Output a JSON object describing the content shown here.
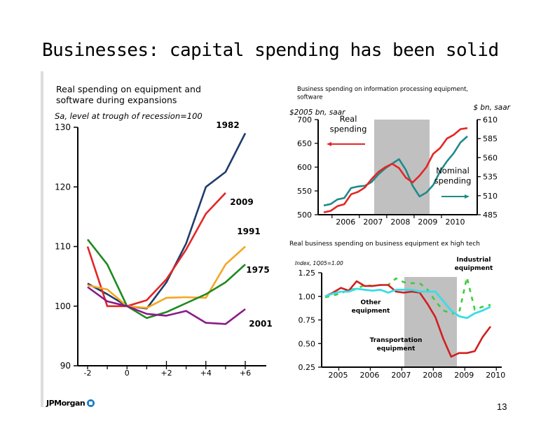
{
  "slide": {
    "title": "Businesses: capital spending has been solid",
    "footer_logo": "JPMorgan",
    "page_number": "13"
  },
  "chart_data": [
    {
      "type": "line",
      "title": "Real spending on equipment and software during expansions",
      "ylabel": "Sa, level at trough of recession=100",
      "xlabel": "",
      "x": [
        -2,
        -1,
        0,
        1,
        2,
        3,
        4,
        5,
        6
      ],
      "x_tick_labels": [
        "-2",
        "0",
        "+2",
        "+4",
        "+6"
      ],
      "y_ticks": [
        90,
        100,
        110,
        120,
        130
      ],
      "ylim": [
        90,
        130
      ],
      "series": [
        {
          "name": "1982",
          "color": "#1f3d6b",
          "values": [
            103.8,
            102,
            100,
            99.6,
            104,
            110.5,
            120,
            122.5,
            129
          ]
        },
        {
          "name": "2009",
          "color": "#e32626",
          "values": [
            110,
            100,
            100,
            101,
            104.5,
            109.5,
            115.5,
            119,
            null
          ]
        },
        {
          "name": "1991",
          "color": "#f5a623",
          "values": [
            103.5,
            102.8,
            100,
            99.7,
            101.4,
            101.5,
            101.4,
            107,
            110
          ]
        },
        {
          "name": "1975",
          "color": "#1e8a1e",
          "values": [
            111.2,
            107,
            100,
            98,
            99,
            100.5,
            102,
            104,
            107
          ]
        },
        {
          "name": "2001",
          "color": "#8a1a8a",
          "values": [
            103.2,
            100.8,
            100,
            98.7,
            98.4,
            99.2,
            97.2,
            97,
            99.5
          ]
        }
      ],
      "grid": false
    },
    {
      "type": "line",
      "title": "Business spending on information processing equipment, software",
      "ylabel_left": "$2005 bn, saar",
      "ylabel_right": "$ bn, saar",
      "x_tick_labels": [
        "2006",
        "2007",
        "2008",
        "2009",
        "2010"
      ],
      "xlim": [
        2005.25,
        2010.5
      ],
      "ylim_left": [
        500,
        700
      ],
      "ylim_right": [
        485,
        610
      ],
      "y_ticks_left": [
        500,
        550,
        600,
        650,
        700
      ],
      "y_ticks_right": [
        485,
        510,
        535,
        560,
        585,
        610
      ],
      "recession_shade": [
        2007.75,
        2009.5
      ],
      "annotations": [
        "Real spending",
        "Nominal spending"
      ],
      "series": [
        {
          "name": "Real spending",
          "axis": "left",
          "color": "#e32626",
          "x": [
            2005.25,
            2005.5,
            2005.75,
            2006.0,
            2006.25,
            2006.5,
            2006.75,
            2007.0,
            2007.25,
            2007.5,
            2007.75,
            2008.0,
            2008.25,
            2008.5,
            2008.75,
            2009.0,
            2009.25,
            2009.5,
            2009.75,
            2010.0,
            2010.25,
            2010.5
          ],
          "values": [
            505,
            508,
            518,
            522,
            543,
            548,
            557,
            575,
            590,
            600,
            607,
            598,
            578,
            568,
            582,
            600,
            628,
            640,
            660,
            668,
            680,
            682
          ]
        },
        {
          "name": "Nominal spending",
          "axis": "right",
          "color": "#1f8a8a",
          "x": [
            2005.25,
            2005.5,
            2005.75,
            2006.0,
            2006.25,
            2006.5,
            2006.75,
            2007.0,
            2007.25,
            2007.5,
            2007.75,
            2008.0,
            2008.25,
            2008.5,
            2008.75,
            2009.0,
            2009.25,
            2009.5,
            2009.75,
            2010.0,
            2010.25,
            2010.5
          ],
          "values": [
            497,
            499,
            505,
            507,
            520,
            522,
            523,
            528,
            538,
            546,
            552,
            558,
            544,
            523,
            509,
            514,
            524,
            542,
            555,
            566,
            580,
            588
          ]
        }
      ],
      "grid": false
    },
    {
      "type": "line",
      "title": "Real business spending on business equipment ex high tech",
      "ylabel": "Index, 1Q05=1.00",
      "x_tick_labels": [
        "2005",
        "2006",
        "2007",
        "2008",
        "2009",
        "2010"
      ],
      "xlim": [
        2004.75,
        2010.5
      ],
      "ylim": [
        0.25,
        1.25
      ],
      "y_ticks": [
        0.25,
        0.5,
        0.75,
        1.0,
        1.25
      ],
      "recession_shade": [
        2007.75,
        2009.5
      ],
      "annotations": [
        "Industrial equipment",
        "Other equipment",
        "Transportation equipment"
      ],
      "series": [
        {
          "name": "Transportation equipment",
          "color": "#d11f1f",
          "style": "solid",
          "x": [
            2005.0,
            2005.25,
            2005.5,
            2005.75,
            2006.0,
            2006.25,
            2006.5,
            2006.75,
            2007.0,
            2007.25,
            2007.5,
            2007.75,
            2008.0,
            2008.25,
            2008.5,
            2008.75,
            2009.0,
            2009.25,
            2009.5,
            2009.75,
            2010.0,
            2010.25
          ],
          "values": [
            1.0,
            1.04,
            1.09,
            1.06,
            1.16,
            1.11,
            1.11,
            1.12,
            1.12,
            1.05,
            1.04,
            1.05,
            1.04,
            0.92,
            0.78,
            0.55,
            0.36,
            0.4,
            0.4,
            0.42,
            0.57,
            0.68
          ]
        },
        {
          "name": "Other equipment",
          "color": "#38dde8",
          "style": "solid",
          "x": [
            2005.0,
            2005.25,
            2005.5,
            2005.75,
            2006.0,
            2006.25,
            2006.5,
            2006.75,
            2007.0,
            2007.25,
            2007.5,
            2007.75,
            2008.0,
            2008.25,
            2008.5,
            2008.75,
            2009.0,
            2009.25,
            2009.5,
            2009.75,
            2010.0,
            2010.25
          ],
          "values": [
            1.0,
            1.03,
            1.05,
            1.05,
            1.08,
            1.07,
            1.06,
            1.07,
            1.04,
            1.07,
            1.07,
            1.07,
            1.05,
            1.05,
            1.05,
            0.95,
            0.85,
            0.79,
            0.77,
            0.82,
            0.85,
            0.89
          ]
        },
        {
          "name": "Industrial equipment",
          "color": "#3ccc3c",
          "style": "dashed",
          "x": [
            2005.0,
            2005.25,
            2005.5,
            2005.75,
            2006.0,
            2006.25,
            2006.5,
            2006.75,
            2007.0,
            2007.25,
            2007.5,
            2007.75,
            2008.0,
            2008.25,
            2008.5,
            2008.75,
            2009.0,
            2009.25,
            2009.5,
            2009.75,
            2010.0,
            2010.25
          ],
          "values": [
            0.99,
            1.01,
            1.03,
            1.07,
            1.08,
            1.12,
            1.11,
            1.12,
            1.12,
            1.19,
            1.15,
            1.14,
            1.14,
            1.07,
            0.95,
            0.85,
            0.82,
            0.82,
            1.2,
            0.86,
            0.89,
            0.91
          ]
        }
      ],
      "grid": false
    }
  ]
}
